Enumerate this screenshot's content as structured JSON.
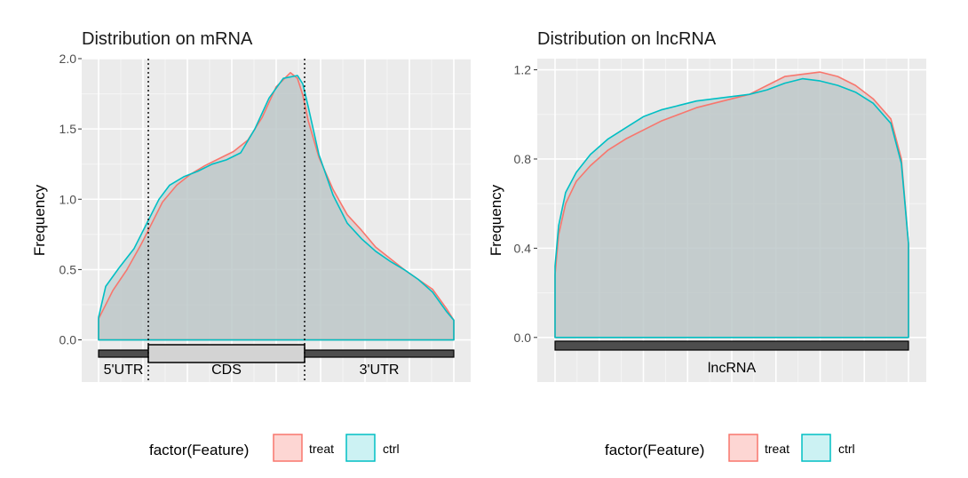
{
  "chart_data": [
    {
      "id": "mrna",
      "type": "area",
      "title": "Distribution on mRNA",
      "xlabel": "",
      "ylabel": "Frequency",
      "xlim": [
        0,
        1
      ],
      "ylim": [
        -0.3,
        2.0
      ],
      "yticks": [
        0.0,
        0.5,
        1.0,
        1.5,
        2.0
      ],
      "ytick_labels": [
        "0.0",
        "0.5",
        "1.0",
        "1.5",
        "2.0"
      ],
      "boundaries": [
        0.14,
        0.58
      ],
      "segments": [
        {
          "label": "5'UTR",
          "start": 0.0,
          "end": 0.14,
          "kind": "utr"
        },
        {
          "label": "CDS",
          "start": 0.14,
          "end": 0.58,
          "kind": "cds"
        },
        {
          "label": "3'UTR",
          "start": 0.58,
          "end": 1.0,
          "kind": "utr"
        }
      ],
      "series": [
        {
          "name": "treat",
          "x": [
            0,
            0.04,
            0.08,
            0.12,
            0.14,
            0.18,
            0.22,
            0.26,
            0.3,
            0.34,
            0.38,
            0.42,
            0.46,
            0.5,
            0.54,
            0.56,
            0.575,
            0.59,
            0.62,
            0.66,
            0.7,
            0.74,
            0.78,
            0.82,
            0.86,
            0.9,
            0.94,
            0.98,
            1.0
          ],
          "y": [
            0.15,
            0.35,
            0.5,
            0.68,
            0.78,
            0.98,
            1.1,
            1.18,
            1.24,
            1.29,
            1.34,
            1.42,
            1.58,
            1.8,
            1.9,
            1.86,
            1.74,
            1.56,
            1.3,
            1.07,
            0.89,
            0.78,
            0.66,
            0.58,
            0.5,
            0.43,
            0.36,
            0.22,
            0.14
          ]
        },
        {
          "name": "ctrl",
          "x": [
            0,
            0.02,
            0.06,
            0.1,
            0.14,
            0.17,
            0.2,
            0.24,
            0.28,
            0.32,
            0.36,
            0.4,
            0.44,
            0.48,
            0.52,
            0.56,
            0.575,
            0.59,
            0.62,
            0.66,
            0.7,
            0.74,
            0.78,
            0.82,
            0.86,
            0.9,
            0.94,
            0.98,
            1.0
          ],
          "y": [
            0.16,
            0.38,
            0.52,
            0.65,
            0.85,
            1.0,
            1.1,
            1.16,
            1.2,
            1.25,
            1.28,
            1.33,
            1.5,
            1.72,
            1.86,
            1.88,
            1.82,
            1.66,
            1.32,
            1.03,
            0.83,
            0.72,
            0.63,
            0.56,
            0.5,
            0.43,
            0.34,
            0.2,
            0.14
          ]
        }
      ]
    },
    {
      "id": "lncrna",
      "type": "area",
      "title": "Distribution on lncRNA",
      "xlabel": "",
      "ylabel": "Frequency",
      "xlim": [
        0,
        1
      ],
      "ylim": [
        -0.2,
        1.25
      ],
      "yticks": [
        0.0,
        0.4,
        0.8,
        1.2
      ],
      "ytick_labels": [
        "0.0",
        "0.4",
        "0.8",
        "1.2"
      ],
      "boundaries": [],
      "segments": [
        {
          "label": "lncRNA",
          "start": 0.0,
          "end": 1.0,
          "kind": "utr"
        }
      ],
      "series": [
        {
          "name": "treat",
          "x": [
            0,
            0.01,
            0.03,
            0.06,
            0.1,
            0.15,
            0.2,
            0.25,
            0.3,
            0.35,
            0.4,
            0.45,
            0.5,
            0.55,
            0.6,
            0.65,
            0.7,
            0.75,
            0.8,
            0.85,
            0.9,
            0.95,
            0.98,
            1.0
          ],
          "y": [
            0.28,
            0.46,
            0.6,
            0.7,
            0.77,
            0.84,
            0.89,
            0.93,
            0.97,
            1.0,
            1.03,
            1.05,
            1.07,
            1.09,
            1.13,
            1.17,
            1.18,
            1.19,
            1.17,
            1.13,
            1.07,
            0.98,
            0.8,
            0.42
          ]
        },
        {
          "name": "ctrl",
          "x": [
            0,
            0.01,
            0.03,
            0.06,
            0.1,
            0.15,
            0.2,
            0.25,
            0.3,
            0.35,
            0.4,
            0.45,
            0.5,
            0.55,
            0.6,
            0.65,
            0.7,
            0.75,
            0.8,
            0.85,
            0.9,
            0.95,
            0.98,
            1.0
          ],
          "y": [
            0.32,
            0.5,
            0.65,
            0.74,
            0.82,
            0.89,
            0.94,
            0.99,
            1.02,
            1.04,
            1.06,
            1.07,
            1.08,
            1.09,
            1.11,
            1.14,
            1.16,
            1.15,
            1.13,
            1.1,
            1.05,
            0.96,
            0.78,
            0.42
          ]
        }
      ]
    }
  ],
  "legend": {
    "title": "factor(Feature)",
    "items": [
      {
        "label": "treat",
        "color": "#F8766D"
      },
      {
        "label": "ctrl",
        "color": "#00BFC4"
      }
    ]
  },
  "colors": {
    "panel_bg": "#EBEBEB",
    "grid_major": "#FFFFFF",
    "grid_minor": "#F5F5F5",
    "fill": "#C9C9C9",
    "treat": "#F8766D",
    "ctrl": "#00BFC4",
    "utr_bar": "#4D4D4D",
    "cds_box": "#D3D3D3"
  }
}
